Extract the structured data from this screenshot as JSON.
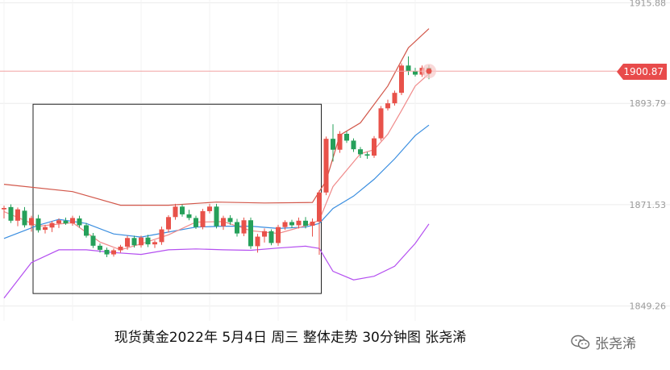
{
  "caption": "现货黄金2022年 5月4日 周三 整体走势 30分钟图 张尧浠",
  "watermark": {
    "label": "张尧浠",
    "icon": "wechat-icon"
  },
  "price_tag": {
    "value": "1900.87",
    "color": "#e84b4b"
  },
  "colors": {
    "up": "#e8524a",
    "down": "#25a05a",
    "upper_band": "#d2574a",
    "middle_line": "#3a8ee0",
    "lower_band": "#b44ff0",
    "ma_short": "#f08a8a",
    "highlight_box": "#222222"
  },
  "chart_data": {
    "type": "candlestick",
    "title": "现货黄金2022年 5月4日 周三 整体走势 30分钟图 张尧浠",
    "y_tick_labels": [
      "1915.88",
      "1893.79",
      "1871.53",
      "1849.26"
    ],
    "y_ticks": [
      1915.88,
      1893.79,
      1871.53,
      1849.26
    ],
    "ylim": [
      1846.0,
      1916.5
    ],
    "grid": true,
    "current_price": 1900.87,
    "candles": [
      [
        1870.5,
        1871.3,
        1868.5,
        1870.8
      ],
      [
        1871.0,
        1871.6,
        1867.5,
        1868.0
      ],
      [
        1868.0,
        1870.9,
        1866.8,
        1870.5
      ],
      [
        1870.2,
        1871.0,
        1866.5,
        1867.0
      ],
      [
        1867.0,
        1869.1,
        1865.6,
        1868.6
      ],
      [
        1868.5,
        1869.3,
        1865.4,
        1865.9
      ],
      [
        1866.0,
        1867.1,
        1865.2,
        1866.6
      ],
      [
        1866.5,
        1867.9,
        1865.5,
        1867.5
      ],
      [
        1867.4,
        1868.5,
        1866.4,
        1868.1
      ],
      [
        1868.0,
        1868.7,
        1867.1,
        1867.4
      ],
      [
        1867.4,
        1869.1,
        1866.9,
        1868.6
      ],
      [
        1868.5,
        1869.1,
        1866.5,
        1867.0
      ],
      [
        1867.0,
        1867.5,
        1864.3,
        1864.7
      ],
      [
        1864.7,
        1865.3,
        1862.0,
        1862.5
      ],
      [
        1862.5,
        1863.0,
        1861.0,
        1861.6
      ],
      [
        1861.6,
        1862.1,
        1860.0,
        1860.6
      ],
      [
        1860.6,
        1861.9,
        1860.1,
        1861.5
      ],
      [
        1861.5,
        1862.7,
        1861.0,
        1862.3
      ],
      [
        1862.3,
        1864.7,
        1861.6,
        1864.2
      ],
      [
        1864.2,
        1864.7,
        1862.1,
        1862.6
      ],
      [
        1862.6,
        1864.7,
        1862.1,
        1864.3
      ],
      [
        1864.3,
        1864.9,
        1862.2,
        1862.8
      ],
      [
        1862.8,
        1863.7,
        1862.0,
        1863.3
      ],
      [
        1863.3,
        1866.7,
        1862.7,
        1866.1
      ],
      [
        1866.1,
        1869.2,
        1865.4,
        1868.8
      ],
      [
        1868.8,
        1871.7,
        1868.2,
        1871.1
      ],
      [
        1871.1,
        1871.6,
        1868.9,
        1869.4
      ],
      [
        1869.4,
        1870.4,
        1868.1,
        1868.6
      ],
      [
        1868.6,
        1869.1,
        1866.2,
        1866.6
      ],
      [
        1866.6,
        1870.6,
        1866.1,
        1870.1
      ],
      [
        1870.1,
        1871.7,
        1869.6,
        1871.1
      ],
      [
        1871.1,
        1871.7,
        1866.3,
        1866.8
      ],
      [
        1866.8,
        1869.1,
        1866.0,
        1868.6
      ],
      [
        1868.6,
        1869.2,
        1867.1,
        1867.7
      ],
      [
        1867.7,
        1868.4,
        1864.5,
        1865.2
      ],
      [
        1865.2,
        1868.7,
        1864.6,
        1868.1
      ],
      [
        1868.1,
        1868.7,
        1861.8,
        1862.4
      ],
      [
        1862.4,
        1865.1,
        1861.0,
        1864.5
      ],
      [
        1864.5,
        1866.3,
        1863.2,
        1865.7
      ],
      [
        1865.7,
        1866.1,
        1862.6,
        1863.1
      ],
      [
        1863.1,
        1867.1,
        1862.5,
        1866.6
      ],
      [
        1866.6,
        1868.1,
        1866.0,
        1867.7
      ],
      [
        1867.7,
        1868.2,
        1866.4,
        1867.0
      ],
      [
        1867.0,
        1868.7,
        1866.3,
        1868.0
      ],
      [
        1868.0,
        1868.8,
        1866.3,
        1866.9
      ],
      [
        1866.9,
        1868.5,
        1864.5,
        1867.8
      ],
      [
        1867.8,
        1874.7,
        1860.5,
        1874.2
      ],
      [
        1874.2,
        1886.5,
        1873.6,
        1886.0
      ],
      [
        1886.0,
        1889.2,
        1881.0,
        1883.6
      ],
      [
        1883.6,
        1887.7,
        1882.9,
        1887.1
      ],
      [
        1887.1,
        1887.6,
        1885.1,
        1885.6
      ],
      [
        1885.6,
        1886.1,
        1883.1,
        1883.7
      ],
      [
        1883.7,
        1884.2,
        1881.8,
        1882.6
      ],
      [
        1882.6,
        1883.1,
        1881.6,
        1882.3
      ],
      [
        1882.3,
        1886.6,
        1881.8,
        1886.1
      ],
      [
        1886.1,
        1893.2,
        1885.6,
        1892.7
      ],
      [
        1892.7,
        1894.6,
        1892.2,
        1893.8
      ],
      [
        1893.8,
        1896.6,
        1893.3,
        1896.1
      ],
      [
        1896.1,
        1902.6,
        1895.6,
        1902.1
      ],
      [
        1902.1,
        1904.1,
        1900.0,
        1900.9
      ],
      [
        1900.9,
        1901.6,
        1899.7,
        1900.1
      ],
      [
        1900.1,
        1902.1,
        1899.6,
        1901.6
      ],
      [
        1901.6,
        1902.2,
        1899.1,
        1900.3
      ]
    ],
    "upper_band": [
      [
        0,
        1876.0
      ],
      [
        10,
        1874.4
      ],
      [
        17,
        1871.4
      ],
      [
        24,
        1871.4
      ],
      [
        31,
        1872.1
      ],
      [
        38,
        1871.9
      ],
      [
        45,
        1872.0
      ],
      [
        47,
        1876.8
      ],
      [
        49,
        1886.8
      ],
      [
        52,
        1889.5
      ],
      [
        56,
        1897.6
      ],
      [
        59,
        1906.0
      ],
      [
        62,
        1910.2
      ]
    ],
    "middle_line": [
      [
        0,
        1864.1
      ],
      [
        5,
        1867.0
      ],
      [
        8,
        1868.3
      ],
      [
        12,
        1867.4
      ],
      [
        16,
        1865.1
      ],
      [
        20,
        1864.4
      ],
      [
        24,
        1865.5
      ],
      [
        28,
        1866.6
      ],
      [
        32,
        1866.8
      ],
      [
        36,
        1866.8
      ],
      [
        40,
        1866.3
      ],
      [
        44,
        1866.6
      ],
      [
        46,
        1867.4
      ],
      [
        48,
        1870.7
      ],
      [
        51,
        1873.4
      ],
      [
        54,
        1877.1
      ],
      [
        57,
        1881.6
      ],
      [
        60,
        1886.7
      ],
      [
        62,
        1889.0
      ]
    ],
    "lower_band": [
      [
        0,
        1851.0
      ],
      [
        4,
        1858.8
      ],
      [
        8,
        1861.6
      ],
      [
        12,
        1861.6
      ],
      [
        16,
        1861.0
      ],
      [
        20,
        1860.6
      ],
      [
        24,
        1861.6
      ],
      [
        28,
        1861.8
      ],
      [
        32,
        1861.6
      ],
      [
        36,
        1861.5
      ],
      [
        40,
        1862.0
      ],
      [
        44,
        1862.4
      ],
      [
        46,
        1861.9
      ],
      [
        48,
        1856.9
      ],
      [
        51,
        1855.0
      ],
      [
        54,
        1855.8
      ],
      [
        57,
        1858.0
      ],
      [
        60,
        1863.0
      ],
      [
        62,
        1867.3
      ]
    ],
    "ma_short": [
      [
        0,
        1870.0
      ],
      [
        5,
        1866.8
      ],
      [
        10,
        1867.6
      ],
      [
        14,
        1863.3
      ],
      [
        17,
        1861.6
      ],
      [
        20,
        1862.9
      ],
      [
        24,
        1864.9
      ],
      [
        28,
        1867.7
      ],
      [
        32,
        1867.8
      ],
      [
        36,
        1865.8
      ],
      [
        40,
        1865.2
      ],
      [
        44,
        1866.9
      ],
      [
        46,
        1868.1
      ],
      [
        48,
        1875.5
      ],
      [
        52,
        1882.7
      ],
      [
        54,
        1883.6
      ],
      [
        56,
        1887.0
      ],
      [
        58,
        1892.2
      ],
      [
        60,
        1897.6
      ],
      [
        62,
        1900.3
      ]
    ],
    "highlight_box": {
      "start_index": 4,
      "end_index": 45,
      "y_range": [
        1852.0,
        1893.6
      ]
    }
  }
}
